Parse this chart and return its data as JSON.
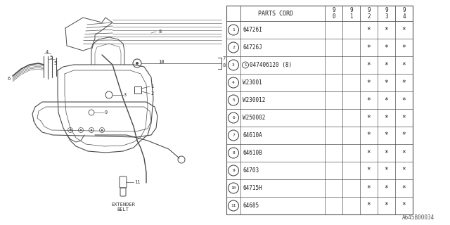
{
  "parts": [
    {
      "num": "1",
      "code": "64726I"
    },
    {
      "num": "2",
      "code": "64726J"
    },
    {
      "num": "3",
      "code": "047406120 (8)",
      "s_prefix": true
    },
    {
      "num": "4",
      "code": "W23001"
    },
    {
      "num": "5",
      "code": "W230012"
    },
    {
      "num": "6",
      "code": "W250002"
    },
    {
      "num": "7",
      "code": "64610A"
    },
    {
      "num": "8",
      "code": "64610B"
    },
    {
      "num": "9",
      "code": "64703"
    },
    {
      "num": "10",
      "code": "64715H"
    },
    {
      "num": "11",
      "code": "64685"
    }
  ],
  "year_cols": [
    "9\n0",
    "9\n1",
    "9\n2",
    "9\n3",
    "9\n4"
  ],
  "stars": [
    [
      false,
      false,
      true,
      true,
      true
    ],
    [
      false,
      false,
      true,
      true,
      true
    ],
    [
      false,
      false,
      true,
      true,
      true
    ],
    [
      false,
      false,
      true,
      true,
      true
    ],
    [
      false,
      false,
      true,
      true,
      true
    ],
    [
      false,
      false,
      true,
      true,
      true
    ],
    [
      false,
      false,
      true,
      true,
      true
    ],
    [
      false,
      false,
      true,
      true,
      true
    ],
    [
      false,
      false,
      true,
      true,
      true
    ],
    [
      false,
      false,
      true,
      true,
      true
    ],
    [
      false,
      false,
      true,
      true,
      true
    ]
  ],
  "footer_code": "A645B00034",
  "extender_label": "EXTENDER\nBELT",
  "lc": "#4a4a4a",
  "tc": "#555555"
}
